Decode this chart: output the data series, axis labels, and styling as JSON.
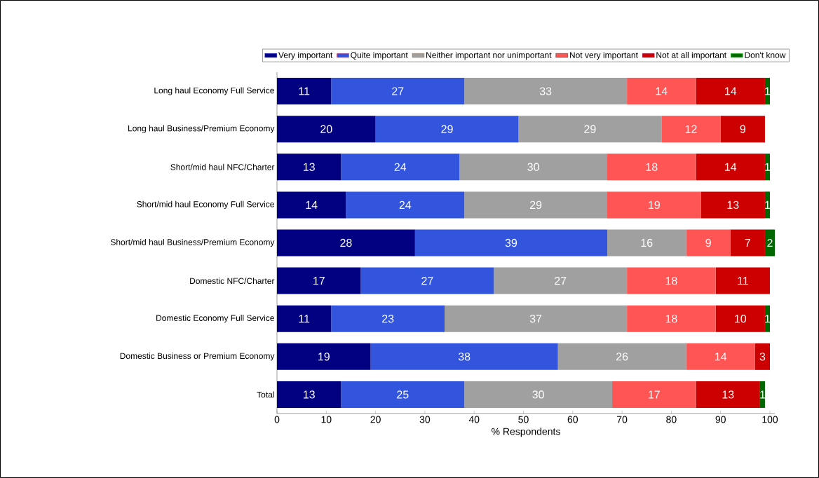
{
  "chart_data": {
    "type": "bar",
    "orientation": "horizontal",
    "stacked": true,
    "data_labels": true,
    "legend": "top",
    "grid": false,
    "xlabel": "% Respondents",
    "xlim": [
      0,
      101
    ],
    "xticks": [
      0,
      10,
      20,
      30,
      40,
      50,
      60,
      70,
      80,
      90,
      100
    ],
    "categories": [
      "Long haul Economy Full Service",
      "Long haul Business/Premium Economy",
      "Short/mid haul NFC/Charter",
      "Short/mid haul Economy Full Service",
      "Short/mid haul Business/Premium Economy",
      "Domestic NFC/Charter",
      "Domestic Economy Full Service",
      "Domestic Business or Premium Economy",
      "Total"
    ],
    "series": [
      {
        "name": "Very important",
        "color": "#000080",
        "values": [
          11,
          20,
          13,
          14,
          28,
          17,
          11,
          19,
          13
        ]
      },
      {
        "name": "Quite important",
        "color": "#3355dd",
        "values": [
          27,
          29,
          24,
          24,
          39,
          27,
          23,
          38,
          25
        ]
      },
      {
        "name": "Neither important nor unimportant",
        "color": "#a0a0a0",
        "values": [
          33,
          29,
          30,
          29,
          16,
          27,
          37,
          26,
          30
        ]
      },
      {
        "name": "Not very important",
        "color": "#ff5555",
        "values": [
          14,
          12,
          18,
          19,
          9,
          18,
          18,
          14,
          17
        ]
      },
      {
        "name": "Not at all important",
        "color": "#cc0000",
        "values": [
          14,
          9,
          14,
          13,
          7,
          11,
          10,
          3,
          13
        ]
      },
      {
        "name": "Don't know",
        "color": "#006600",
        "values": [
          1,
          null,
          1,
          1,
          2,
          null,
          1,
          null,
          1
        ]
      }
    ]
  }
}
